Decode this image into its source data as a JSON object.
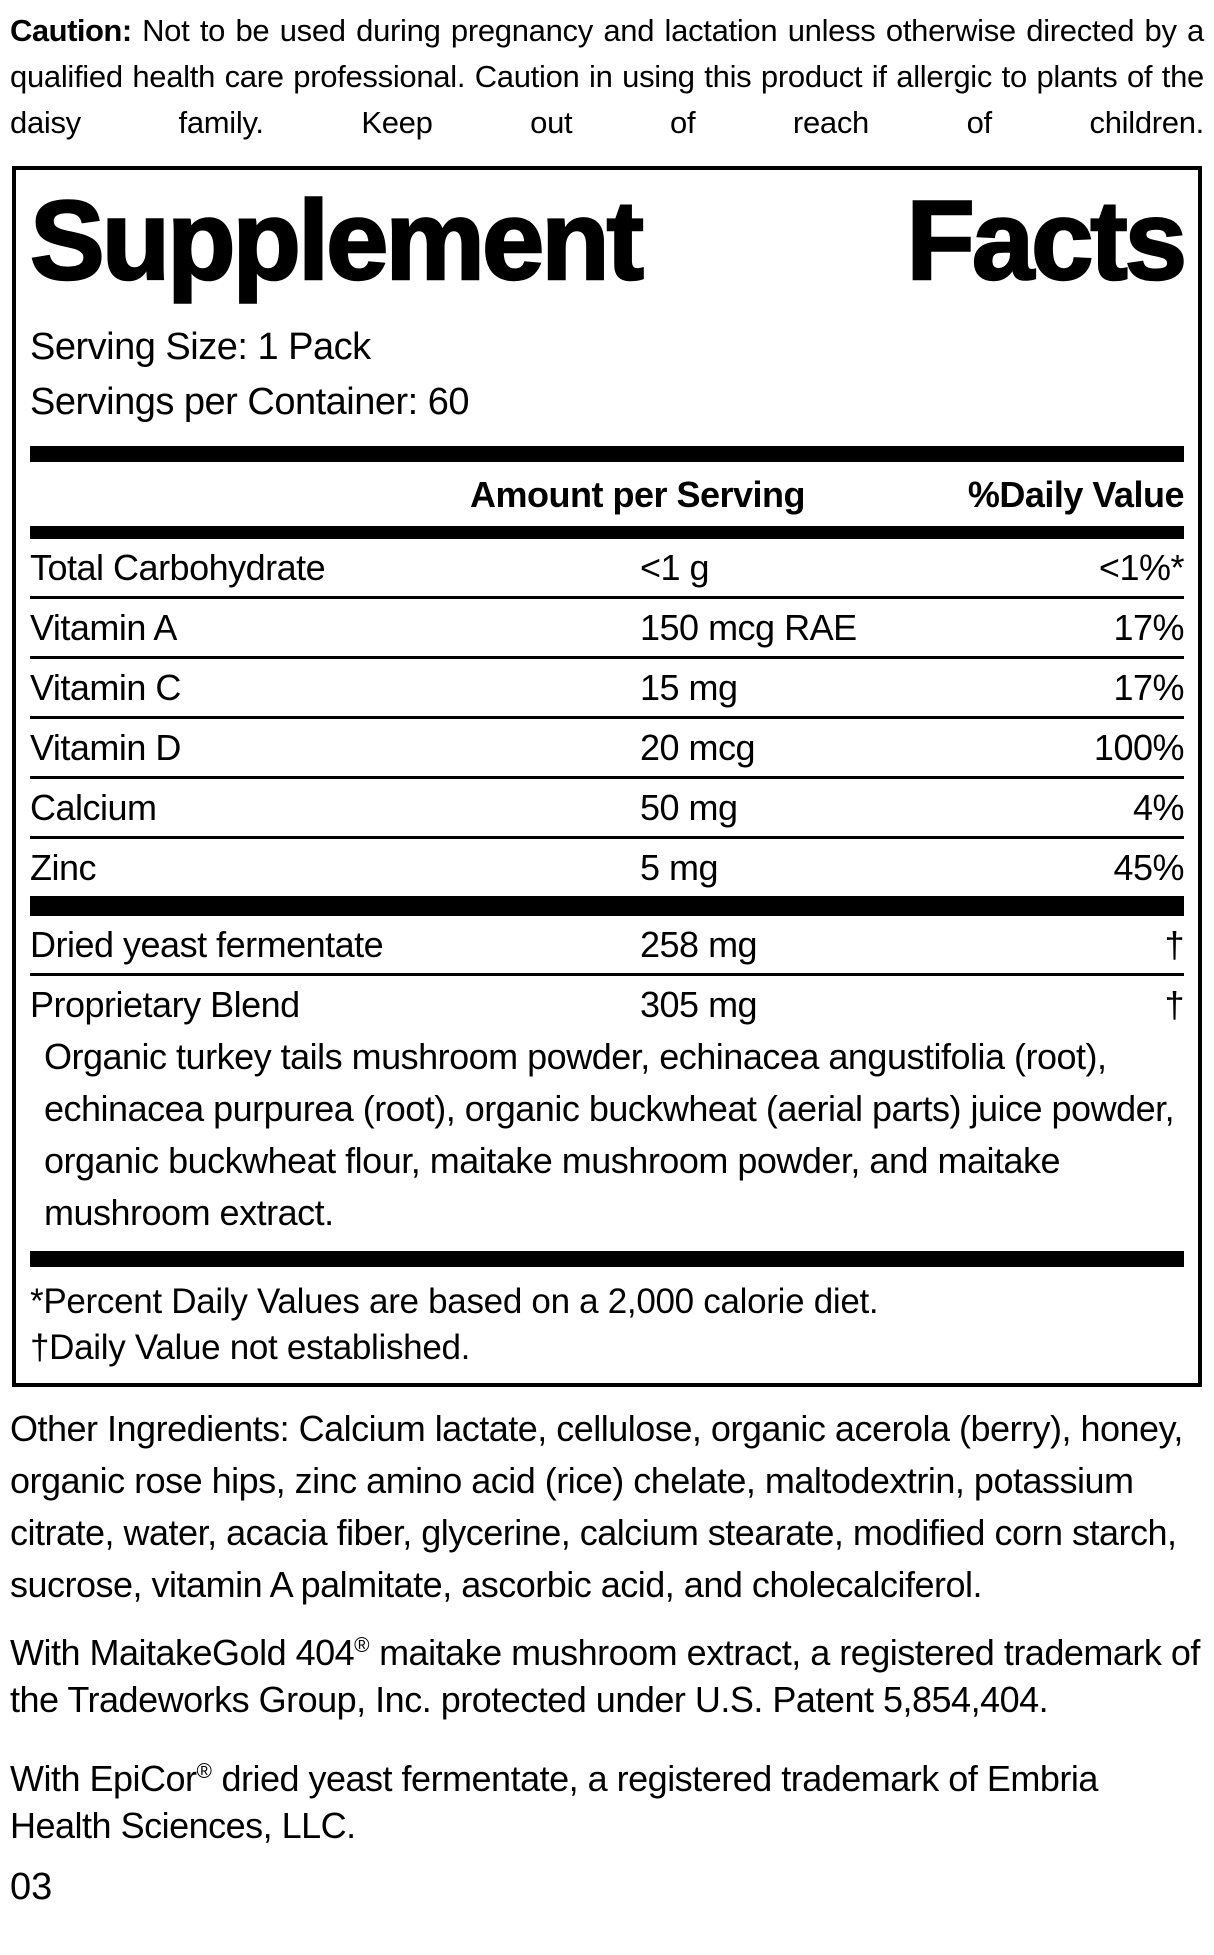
{
  "caution": {
    "label": "Caution:",
    "text": " Not to be used during pregnancy and lactation unless otherwise directed by a qualified health care professional. Caution in using this product if allergic to plants of the daisy family. Keep out of reach of children."
  },
  "facts": {
    "title_word1": "Supplement",
    "title_word2": "Facts",
    "serving_size": "Serving Size: 1 Pack",
    "servings_per_container": "Servings per Container: 60",
    "col_amount": "Amount per Serving",
    "col_dv": "%Daily Value",
    "rows": [
      {
        "name": "Total Carbohydrate",
        "amount": "<1 g",
        "dv": "<1%*"
      },
      {
        "name": "Vitamin A",
        "amount": "150 mcg RAE",
        "dv": "17%"
      },
      {
        "name": "Vitamin C",
        "amount": "15 mg",
        "dv": "17%"
      },
      {
        "name": "Vitamin D",
        "amount": "20 mcg",
        "dv": "100%"
      },
      {
        "name": "Calcium",
        "amount": "50 mg",
        "dv": "4%"
      },
      {
        "name": "Zinc",
        "amount": "5 mg",
        "dv": "45%"
      },
      {
        "name": "Dried yeast fermentate",
        "amount": "258 mg",
        "dv": "†"
      },
      {
        "name": "Proprietary Blend",
        "amount": "305 mg",
        "dv": "†"
      }
    ],
    "blend_description": "Organic turkey tails mushroom powder, echinacea angustifolia (root), echinacea purpurea (root), organic buckwheat (aerial parts) juice powder, organic buckwheat flour, maitake mushroom powder, and maitake mushroom extract.",
    "footnote_percent": "*Percent Daily Values are based on a 2,000 calorie diet.",
    "footnote_dagger": "†Daily Value not established."
  },
  "other_ingredients": "Other Ingredients: Calcium lactate, cellulose, organic acerola (berry), honey, organic rose hips, zinc amino acid (rice) chelate, maltodextrin, potassium citrate, water, acacia fiber, glycerine, calcium stearate, modified corn starch, sucrose, vitamin A palmitate, ascorbic acid, and cholecalciferol.",
  "maitake_note": {
    "pre": "With MaitakeGold 404",
    "reg": "®",
    "post": " maitake mushroom extract, a registered trademark of the Tradeworks Group, Inc. protected under U.S. Patent 5,854,404."
  },
  "epicor_note": {
    "pre": "With EpiCor",
    "reg": "®",
    "post": " dried yeast fermentate, a registered trademark of Embria Health Sciences, LLC."
  },
  "page_number": "03"
}
